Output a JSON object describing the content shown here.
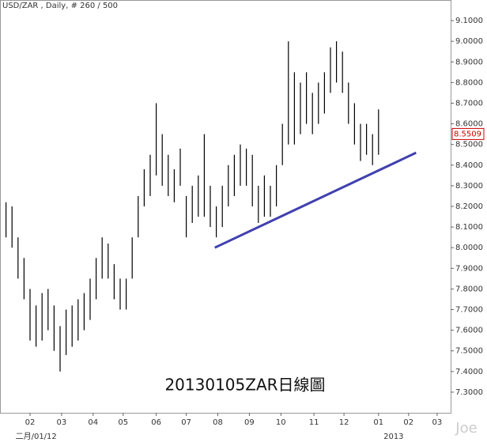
{
  "chart_data": {
    "type": "hl_bars",
    "title": "USD/ZAR , Daily, # 260 / 500",
    "annotation": "20130105ZAR日線圖",
    "watermark": "Joe",
    "xlim": [
      -4,
      296
    ],
    "xticks": [
      {
        "value": 16,
        "label": "02"
      },
      {
        "value": 37,
        "label": "03"
      },
      {
        "value": 58,
        "label": "04"
      },
      {
        "value": 78,
        "label": "05"
      },
      {
        "value": 100,
        "label": "06"
      },
      {
        "value": 120,
        "label": "07"
      },
      {
        "value": 141,
        "label": "08"
      },
      {
        "value": 162,
        "label": "09"
      },
      {
        "value": 183,
        "label": "10"
      },
      {
        "value": 205,
        "label": "11"
      },
      {
        "value": 225,
        "label": "12"
      },
      {
        "value": 248,
        "label": "01"
      },
      {
        "value": 268,
        "label": "02"
      },
      {
        "value": 287,
        "label": "03"
      }
    ],
    "x_period_labels": [
      {
        "value": 0,
        "label": "二月/01/12"
      },
      {
        "value": 245,
        "label": "2013"
      }
    ],
    "ylim": [
      7.2,
      9.2
    ],
    "yticks": [
      {
        "value": 7.3,
        "label": "7.3000"
      },
      {
        "value": 7.4,
        "label": "7.4000"
      },
      {
        "value": 7.5,
        "label": "7.5000"
      },
      {
        "value": 7.6,
        "label": "7.6000"
      },
      {
        "value": 7.7,
        "label": "7.7000"
      },
      {
        "value": 7.8,
        "label": "7.8000"
      },
      {
        "value": 7.9,
        "label": "7.9000"
      },
      {
        "value": 8,
        "label": "8.0000"
      },
      {
        "value": 8.1,
        "label": "8.1000"
      },
      {
        "value": 8.2,
        "label": "8.2000"
      },
      {
        "value": 8.3,
        "label": "8.3000"
      },
      {
        "value": 8.4,
        "label": "8.4000"
      },
      {
        "value": 8.5,
        "label": "8.5000"
      },
      {
        "value": 8.6,
        "label": "8.6000"
      },
      {
        "value": 8.7,
        "label": "8.7000"
      },
      {
        "value": 8.8,
        "label": "8.8000"
      },
      {
        "value": 8.9,
        "label": "8.9000"
      },
      {
        "value": 9,
        "label": "9.0000"
      },
      {
        "value": 9.1,
        "label": "9.1000"
      }
    ],
    "series": [
      {
        "color": "#000000",
        "x": [
          0,
          4,
          8,
          12,
          16,
          20,
          24,
          28,
          32,
          36,
          40,
          44,
          48,
          52,
          56,
          60,
          64,
          68,
          72,
          76,
          80,
          84,
          88,
          92,
          96,
          100,
          104,
          108,
          112,
          116,
          120,
          124,
          128,
          132,
          136,
          140,
          144,
          148,
          152,
          156,
          160,
          164,
          168,
          172,
          176,
          180,
          184,
          188,
          192,
          196,
          200,
          204,
          208,
          212,
          216,
          220,
          224,
          228,
          232,
          236,
          240,
          244,
          248
        ],
        "high": [
          8.22,
          8.2,
          8.05,
          7.95,
          7.8,
          7.72,
          7.78,
          7.8,
          7.72,
          7.62,
          7.7,
          7.72,
          7.75,
          7.78,
          7.85,
          7.95,
          8.05,
          8.02,
          7.92,
          7.85,
          7.85,
          8.05,
          8.25,
          8.38,
          8.45,
          8.7,
          8.55,
          8.45,
          8.38,
          8.48,
          8.25,
          8.3,
          8.35,
          8.55,
          8.3,
          8.2,
          8.3,
          8.4,
          8.45,
          8.5,
          8.48,
          8.45,
          8.3,
          8.35,
          8.3,
          8.4,
          8.6,
          9.0,
          8.85,
          8.8,
          8.85,
          8.75,
          8.8,
          8.85,
          8.97,
          9.0,
          8.95,
          8.8,
          8.7,
          8.6,
          8.6,
          8.55,
          8.67
        ],
        "low": [
          8.05,
          8.0,
          7.85,
          7.75,
          7.55,
          7.52,
          7.55,
          7.6,
          7.5,
          7.4,
          7.48,
          7.52,
          7.55,
          7.6,
          7.65,
          7.75,
          7.85,
          7.85,
          7.75,
          7.7,
          7.7,
          7.85,
          8.05,
          8.2,
          8.25,
          8.35,
          8.3,
          8.25,
          8.22,
          8.3,
          8.05,
          8.12,
          8.15,
          8.15,
          8.1,
          8.05,
          8.1,
          8.2,
          8.25,
          8.3,
          8.3,
          8.2,
          8.12,
          8.15,
          8.15,
          8.2,
          8.4,
          8.5,
          8.5,
          8.55,
          8.6,
          8.55,
          8.6,
          8.65,
          8.75,
          8.8,
          8.75,
          8.6,
          8.5,
          8.42,
          8.45,
          8.4,
          8.45
        ]
      }
    ],
    "trendline": {
      "color": "#4040b0",
      "x": [
        139,
        273
      ],
      "y": [
        8.0,
        8.46
      ]
    },
    "last_price": {
      "value": 8.5509,
      "label": "8.5509",
      "color": "#cc0000"
    }
  }
}
